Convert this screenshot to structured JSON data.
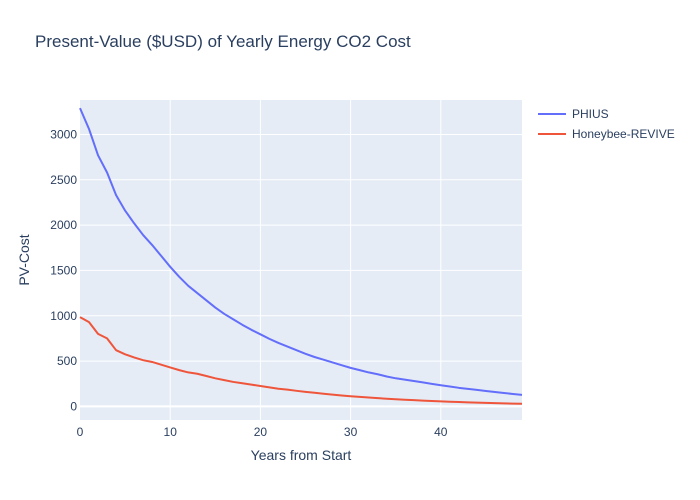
{
  "chart_data": {
    "type": "line",
    "title": "Present-Value ($USD) of Yearly Energy CO2 Cost",
    "xlabel": "Years from Start",
    "ylabel": "PV-Cost",
    "xlim": [
      0,
      49
    ],
    "ylim": [
      -150,
      3380
    ],
    "x_ticks": [
      0,
      10,
      20,
      30,
      40
    ],
    "y_ticks": [
      0,
      500,
      1000,
      1500,
      2000,
      2500,
      3000
    ],
    "grid": true,
    "legend_position": "top-right",
    "x": [
      0,
      1,
      2,
      3,
      4,
      5,
      6,
      7,
      8,
      9,
      10,
      11,
      12,
      13,
      14,
      15,
      16,
      17,
      18,
      19,
      20,
      21,
      22,
      23,
      24,
      25,
      26,
      27,
      28,
      29,
      30,
      31,
      32,
      33,
      34,
      35,
      36,
      37,
      38,
      39,
      40,
      41,
      42,
      43,
      44,
      45,
      46,
      47,
      48,
      49
    ],
    "series": [
      {
        "name": "PHIUS",
        "color": "#636efa",
        "values": [
          3290,
          3060,
          2770,
          2580,
          2330,
          2160,
          2020,
          1890,
          1780,
          1660,
          1540,
          1430,
          1330,
          1250,
          1170,
          1090,
          1020,
          960,
          900,
          845,
          795,
          745,
          700,
          660,
          620,
          580,
          545,
          515,
          485,
          455,
          425,
          400,
          375,
          355,
          330,
          310,
          295,
          280,
          265,
          248,
          233,
          220,
          205,
          193,
          182,
          170,
          159,
          148,
          137,
          127
        ]
      },
      {
        "name": "Honeybee-REVIVE",
        "color": "#ef553b",
        "values": [
          985,
          930,
          800,
          750,
          620,
          575,
          540,
          510,
          490,
          460,
          430,
          400,
          375,
          360,
          335,
          310,
          290,
          270,
          255,
          240,
          225,
          210,
          195,
          185,
          172,
          160,
          150,
          140,
          130,
          120,
          112,
          105,
          98,
          91,
          85,
          79,
          74,
          69,
          64,
          60,
          56,
          52,
          48,
          45,
          42,
          39,
          36,
          33,
          31,
          29
        ]
      }
    ]
  }
}
